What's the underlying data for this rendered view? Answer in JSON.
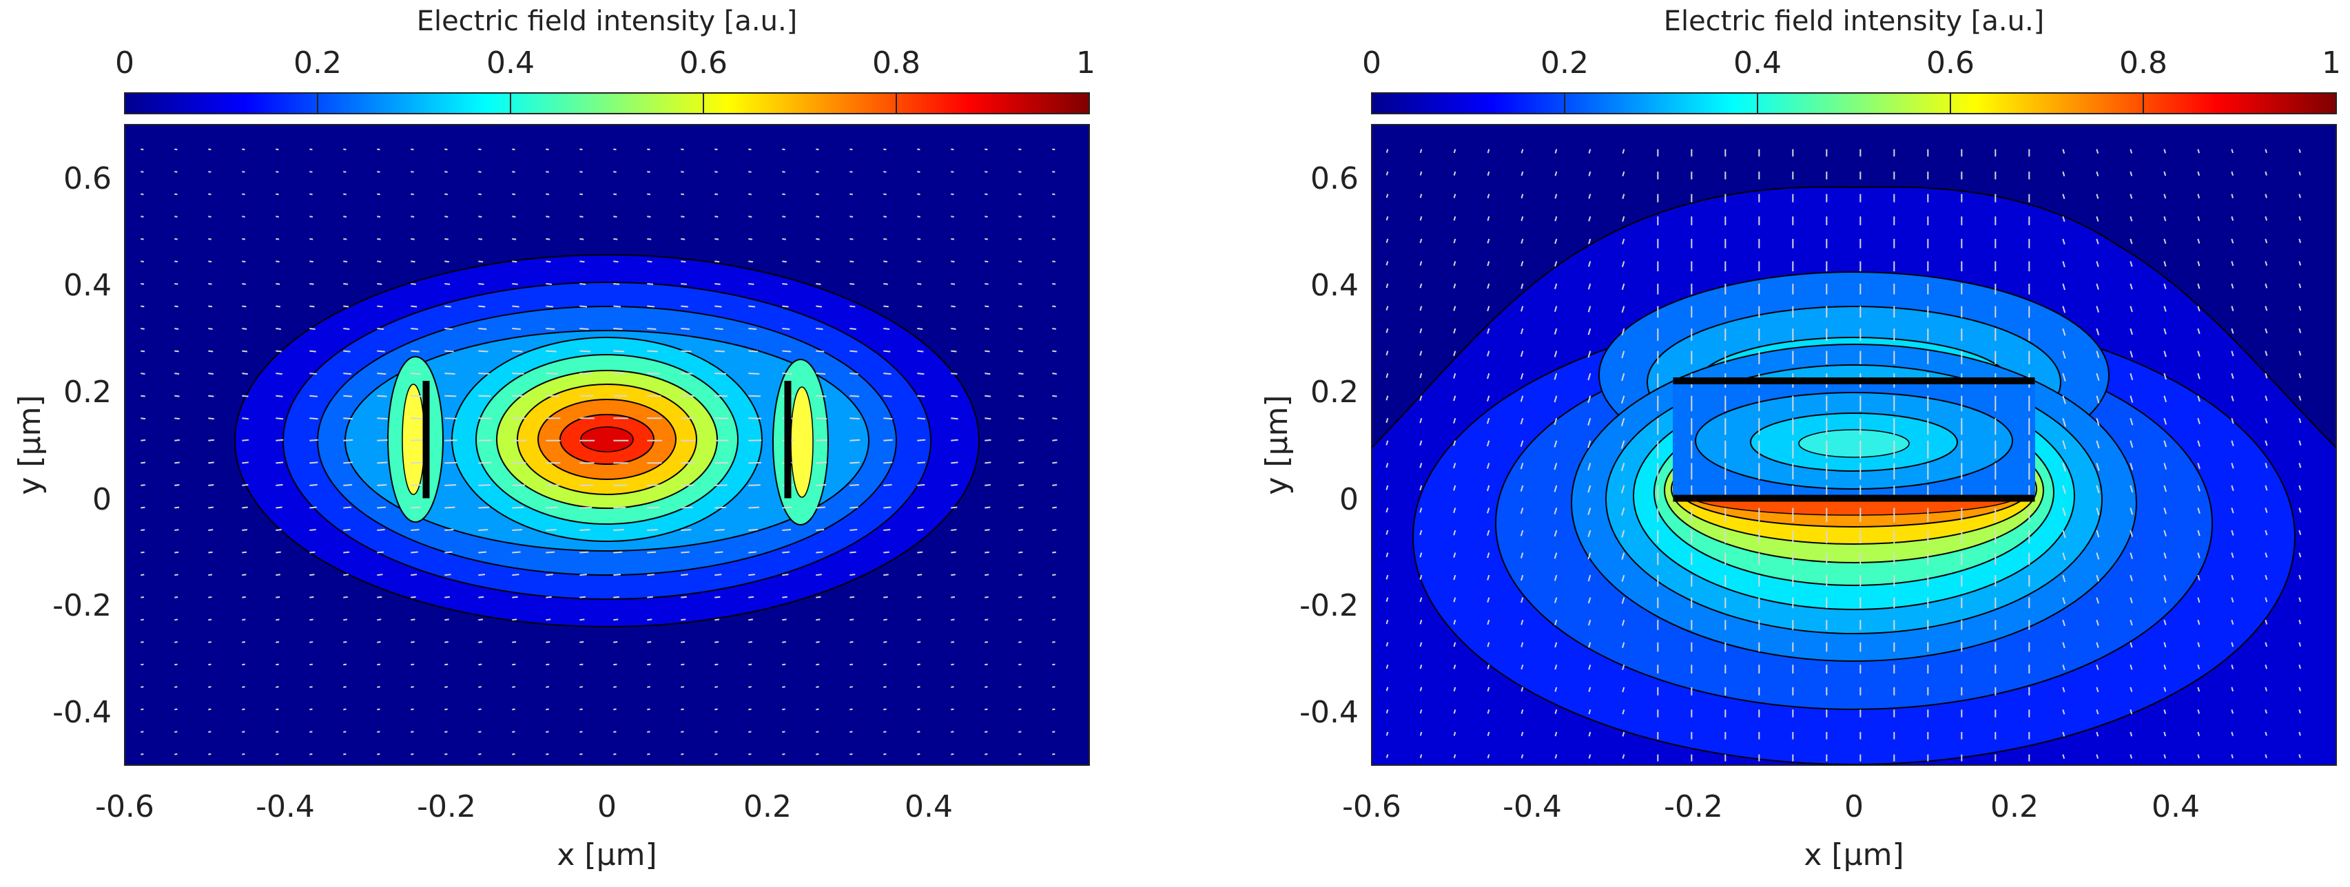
{
  "figure": {
    "colorbar_labels": [
      "0",
      "0.2",
      "0.4",
      "0.6",
      "0.8",
      "1"
    ]
  },
  "colors": {
    "colormap": [
      "#00008f",
      "#0000ff",
      "#007fff",
      "#00ffff",
      "#7fff7f",
      "#ffff00",
      "#ff7f00",
      "#ff0000",
      "#7f0000"
    ],
    "background": "#00008f",
    "arrow": "#d8d8d8",
    "metal": "#000000"
  },
  "chart_data": [
    {
      "type": "contour",
      "colorbar": {
        "title": "Electric field intensity [a.u.]",
        "range": [
          0,
          1
        ],
        "ticks": [
          0,
          0.2,
          0.4,
          0.6,
          0.8,
          1
        ]
      },
      "xlabel": "x [µm]",
      "ylabel": "y [µm]",
      "xlim": [
        -0.6,
        0.6
      ],
      "ylim": [
        -0.5,
        0.7
      ],
      "xticks": [
        -0.6,
        -0.4,
        -0.2,
        0,
        0.2,
        0.4
      ],
      "yticks": [
        -0.4,
        -0.2,
        0,
        0.2,
        0.4,
        0.6
      ],
      "xtick_labels": [
        "-0.6",
        "-0.4",
        "-0.2",
        "0",
        "0.2",
        "0.4"
      ],
      "ytick_labels": [
        "-0.4",
        "-0.2",
        "0",
        "0.2",
        "0.4",
        "0.6"
      ],
      "field_peak": {
        "x": 0,
        "y": 0.11,
        "intensity": 0.92
      },
      "conductors": [
        {
          "x1": -0.225,
          "x2": -0.225,
          "y1": 0,
          "y2": 0.22
        },
        {
          "x1": 0.225,
          "x2": 0.225,
          "y1": 0,
          "y2": 0.22
        }
      ]
    },
    {
      "type": "contour",
      "colorbar": {
        "title": "Electric field intensity [a.u.]",
        "range": [
          0,
          1
        ],
        "ticks": [
          0,
          0.2,
          0.4,
          0.6,
          0.8,
          1
        ]
      },
      "xlabel": "x [µm]",
      "ylabel": "y [µm]",
      "xlim": [
        -0.6,
        0.6
      ],
      "ylim": [
        -0.5,
        0.7
      ],
      "xticks": [
        -0.6,
        -0.4,
        -0.2,
        0,
        0.2,
        0.4
      ],
      "yticks": [
        -0.4,
        -0.2,
        0,
        0.2,
        0.4,
        0.6
      ],
      "xtick_labels": [
        "-0.6",
        "-0.4",
        "-0.2",
        "0",
        "0.2",
        "0.4"
      ],
      "ytick_labels": [
        "-0.4",
        "-0.2",
        "0",
        "0.2",
        "0.4",
        "0.6"
      ],
      "field_peak": {
        "x": 0,
        "y": -0.02,
        "intensity": 0.82
      },
      "conductors": [
        {
          "x1": -0.225,
          "x2": 0.225,
          "y1": 0.22,
          "y2": 0.22
        },
        {
          "x1": -0.225,
          "x2": 0.225,
          "y1": 0,
          "y2": 0
        }
      ]
    }
  ]
}
